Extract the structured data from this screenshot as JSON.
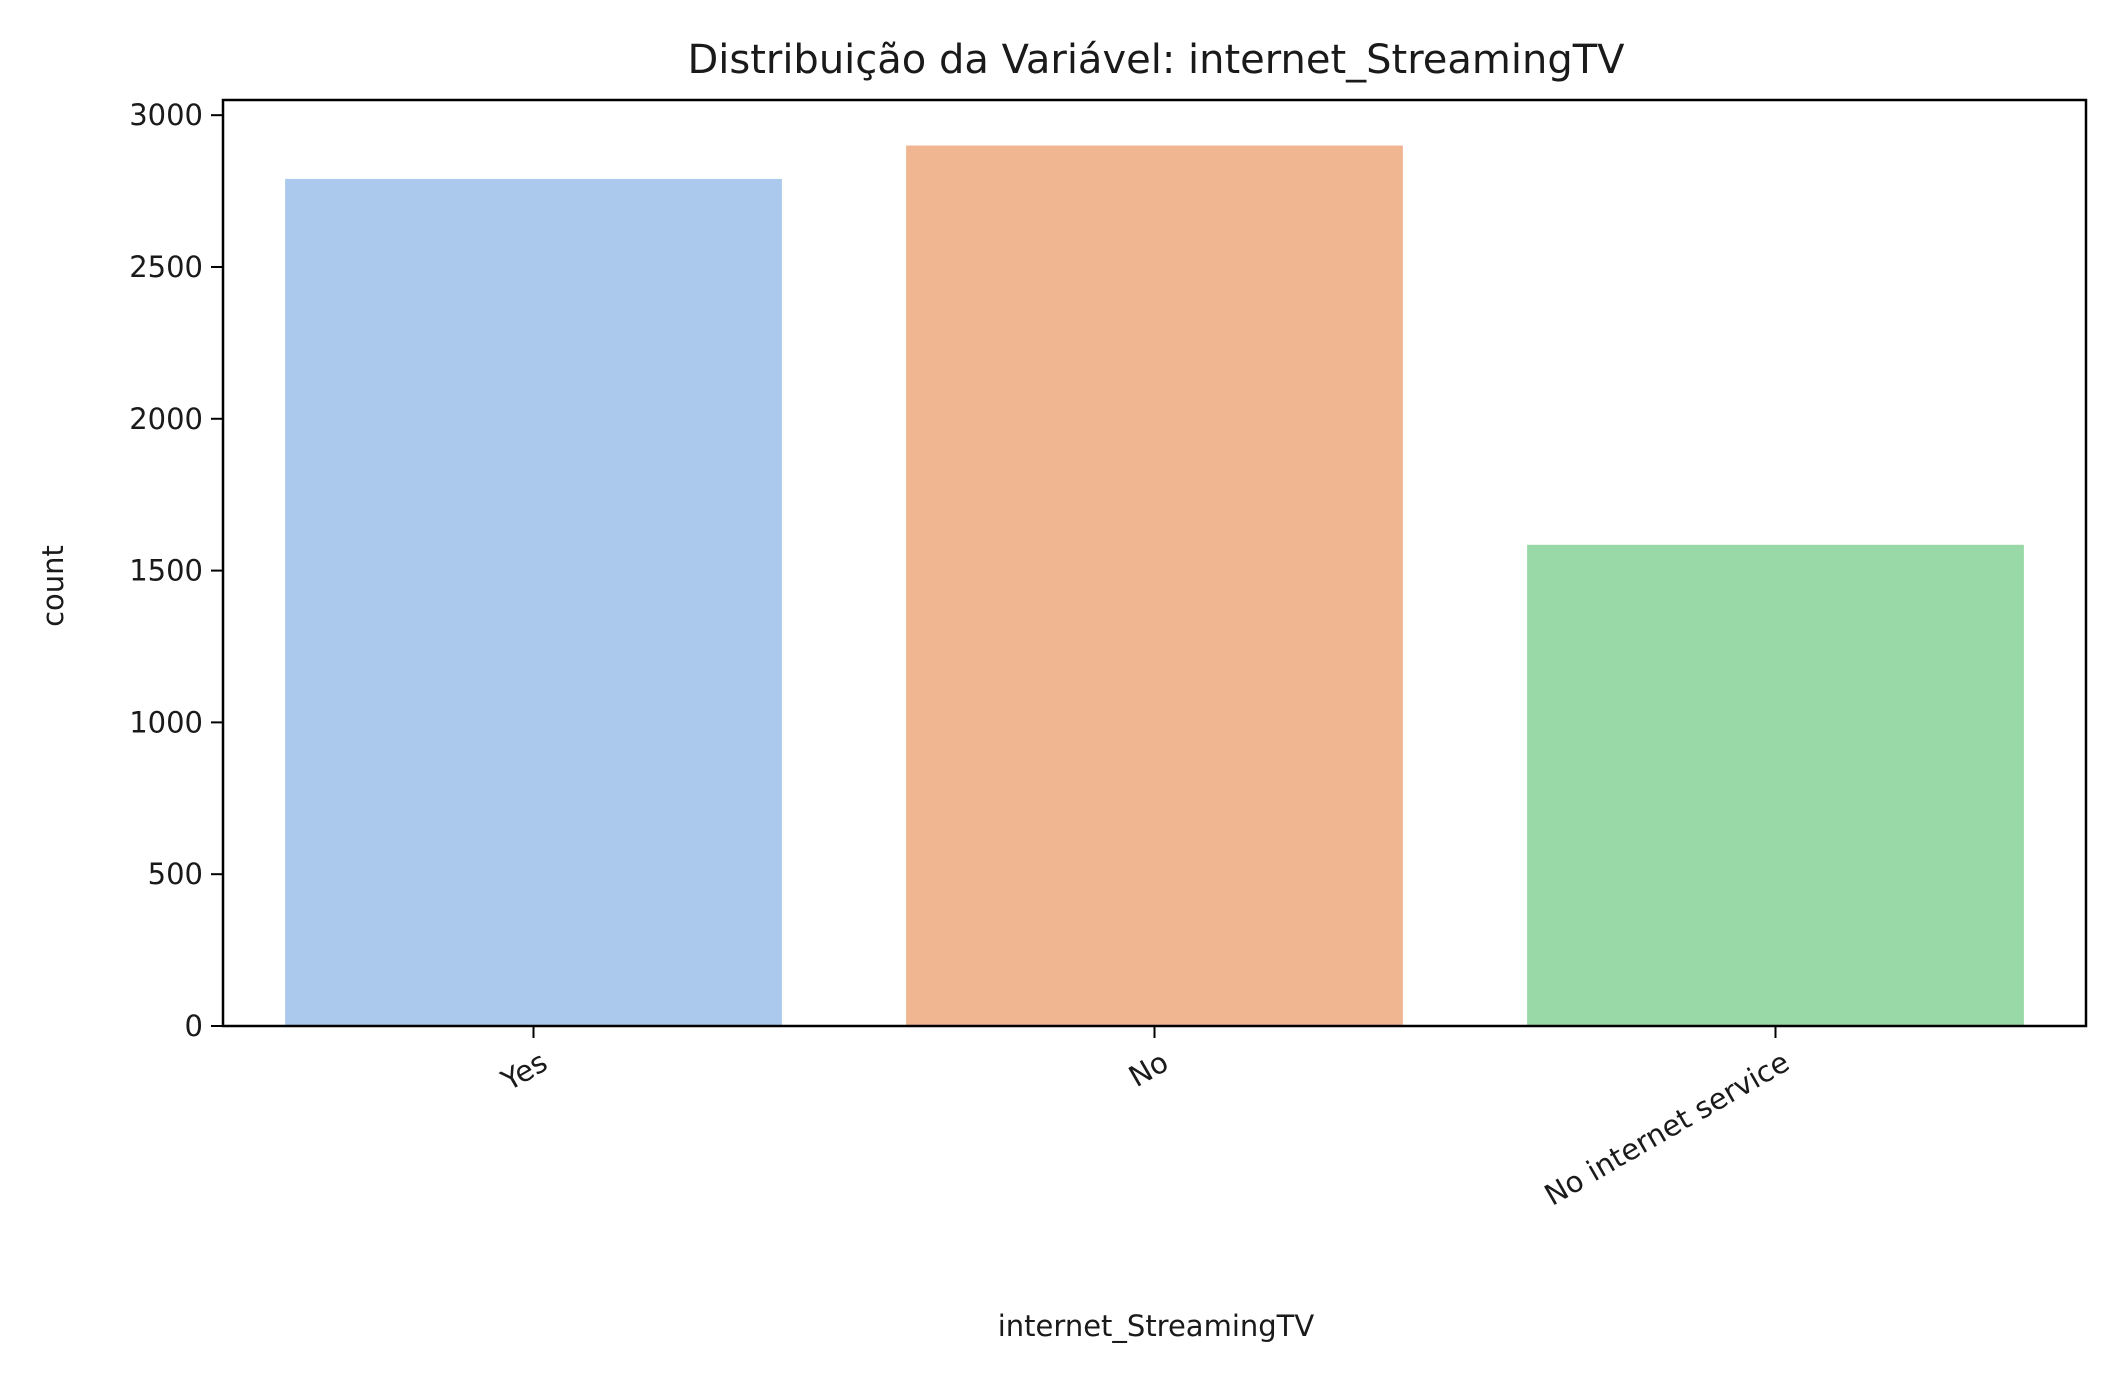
{
  "chart_data": {
    "type": "bar",
    "title": "Distribuição da Variável: internet_StreamingTV",
    "xlabel": "internet_StreamingTV",
    "ylabel": "count",
    "categories": [
      "Yes",
      "No",
      "No internet service"
    ],
    "values": [
      2790,
      2900,
      1585
    ],
    "colors": [
      "#abc9ec",
      "#f0b692",
      "#98d9a7"
    ],
    "ylim": [
      0,
      3050
    ],
    "yticks": [
      0,
      500,
      1000,
      1500,
      2000,
      2500,
      3000
    ],
    "xtick_rotation": 30,
    "grid": false,
    "legend": "none"
  }
}
